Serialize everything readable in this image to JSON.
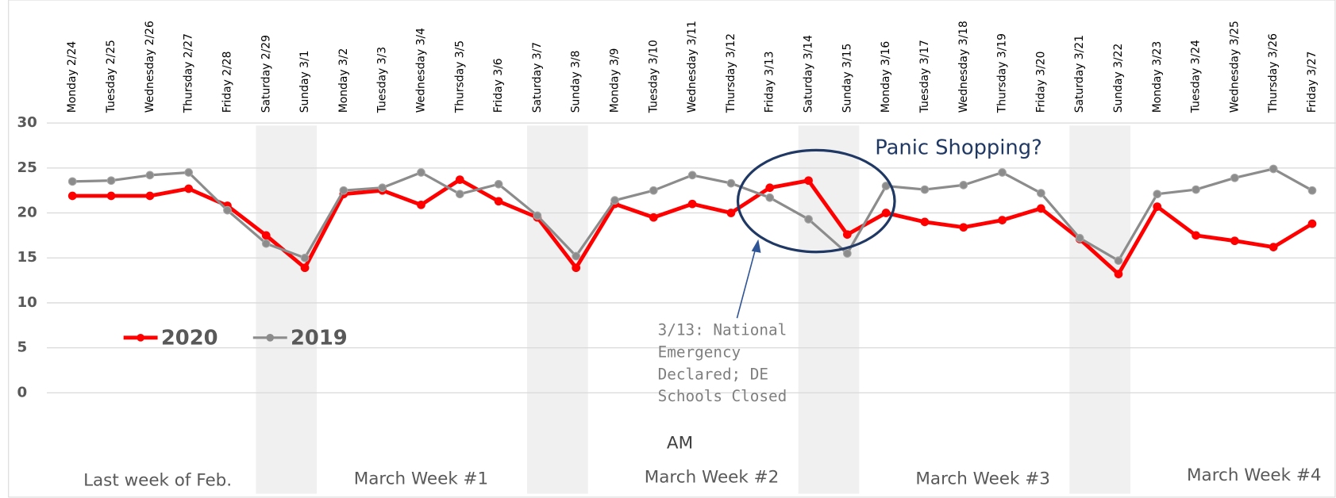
{
  "chart_data": {
    "type": "line",
    "categories": [
      "Monday 2/24",
      "Tuesday 2/25",
      "Wednesday 2/26",
      "Thursday 2/27",
      "Friday 2/28",
      "Saturday 2/29",
      "Sunday 3/1",
      "Monday 3/2",
      "Tuesday 3/3",
      "Wednesday 3/4",
      "Thursday 3/5",
      "Friday 3/6",
      "Saturday 3/7",
      "Sunday 3/8",
      "Monday 3/9",
      "Tuesday 3/10",
      "Wednesday 3/11",
      "Thursday 3/12",
      "Friday 3/13",
      "Saturday 3/14",
      "Sunday 3/15",
      "Monday 3/16",
      "Tuesday 3/17",
      "Wednesday 3/18",
      "Thursday 3/19",
      "Friday 3/20",
      "Saturday 3/21",
      "Sunday 3/22",
      "Monday 3/23",
      "Tuesday 3/24",
      "Wednesday 3/25",
      "Thursday 3/26",
      "Friday 3/27"
    ],
    "series": [
      {
        "name": "2020",
        "color": "#ff0000",
        "values": [
          21.9,
          21.9,
          21.9,
          22.7,
          20.8,
          17.5,
          13.9,
          22.1,
          22.5,
          20.9,
          23.7,
          21.3,
          19.5,
          13.9,
          21.0,
          19.5,
          21.0,
          20.0,
          22.8,
          23.6,
          17.6,
          20.0,
          19.0,
          18.4,
          19.2,
          20.5,
          17.1,
          13.2,
          20.7,
          17.5,
          16.9,
          16.2,
          18.8
        ]
      },
      {
        "name": "2019",
        "color": "#8c8c8c",
        "values": [
          23.5,
          23.6,
          24.2,
          24.5,
          20.3,
          16.6,
          15.0,
          22.5,
          22.8,
          24.5,
          22.1,
          23.2,
          19.7,
          15.2,
          21.4,
          22.5,
          24.2,
          23.3,
          21.7,
          19.3,
          15.5,
          23.0,
          22.6,
          23.1,
          24.5,
          22.2,
          17.2,
          14.7,
          22.1,
          22.6,
          23.9,
          24.9,
          22.5
        ]
      }
    ],
    "ylim": [
      0,
      30
    ],
    "yticks": [
      0,
      5,
      10,
      15,
      20,
      25,
      30
    ],
    "grid": true,
    "x_label": "AM",
    "week_labels": [
      "Last week of Feb.",
      "March Week #1",
      "March Week #2",
      "March Week #3",
      "March Week #4"
    ],
    "annotations": {
      "panic": "Panic Shopping?",
      "emergency_lines": [
        "3/13: National",
        "Emergency",
        "Declared; DE",
        "Schools Closed"
      ]
    }
  }
}
